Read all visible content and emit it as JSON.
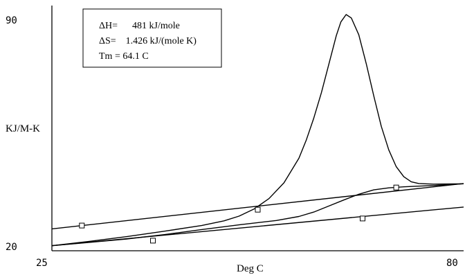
{
  "chart_data": {
    "type": "line",
    "title": "",
    "xlabel": "Deg C",
    "ylabel": "KJ/M-K",
    "xlim": [
      25,
      80
    ],
    "ylim": [
      20,
      90
    ],
    "x_ticks": [
      "25",
      "80"
    ],
    "y_ticks": [
      "90",
      "20"
    ],
    "grid": false,
    "annotation": [
      "ΔH=      481 kJ/mole",
      "ΔS=    1.426 kJ/(mole K)",
      "Tm = 64.1 C"
    ],
    "series": [
      {
        "x": [
          25,
          30,
          35,
          40,
          45,
          48,
          50,
          52,
          54,
          56,
          58,
          59,
          60,
          61,
          62,
          63,
          63.6,
          64.3,
          65,
          66,
          67,
          68,
          69,
          70,
          71,
          72,
          73,
          74,
          76,
          80
        ],
        "y": [
          21.5,
          22.8,
          24.2,
          25.8,
          27.5,
          28.9,
          30.3,
          32.4,
          35.5,
          40.2,
          47.5,
          53,
          59.5,
          67,
          75.5,
          84,
          88,
          90.2,
          89.2,
          84.2,
          75.5,
          66,
          57,
          50,
          45,
          42,
          40.5,
          40,
          39.8,
          39.9
        ]
      },
      {
        "x": [
          25,
          80
        ],
        "y": [
          26.5,
          40
        ]
      },
      {
        "x": [
          25,
          80
        ],
        "y": [
          21.5,
          33
        ]
      },
      {
        "x": [
          25,
          30,
          35,
          40,
          45,
          50,
          55,
          58,
          60,
          62,
          64,
          66,
          68,
          70,
          72,
          74,
          76,
          80
        ],
        "y": [
          21.5,
          22.5,
          23.5,
          24.8,
          26.3,
          27.7,
          29,
          30.2,
          31.5,
          33.3,
          35.1,
          36.8,
          38.1,
          38.7,
          39.0,
          39.2,
          39.4,
          39.9
        ]
      }
    ],
    "markers": [
      {
        "x": 29.0,
        "y": 27.5
      },
      {
        "x": 38.5,
        "y": 23.0
      },
      {
        "x": 52.5,
        "y": 32.2
      },
      {
        "x": 66.5,
        "y": 29.6
      },
      {
        "x": 71.0,
        "y": 38.8
      }
    ]
  }
}
